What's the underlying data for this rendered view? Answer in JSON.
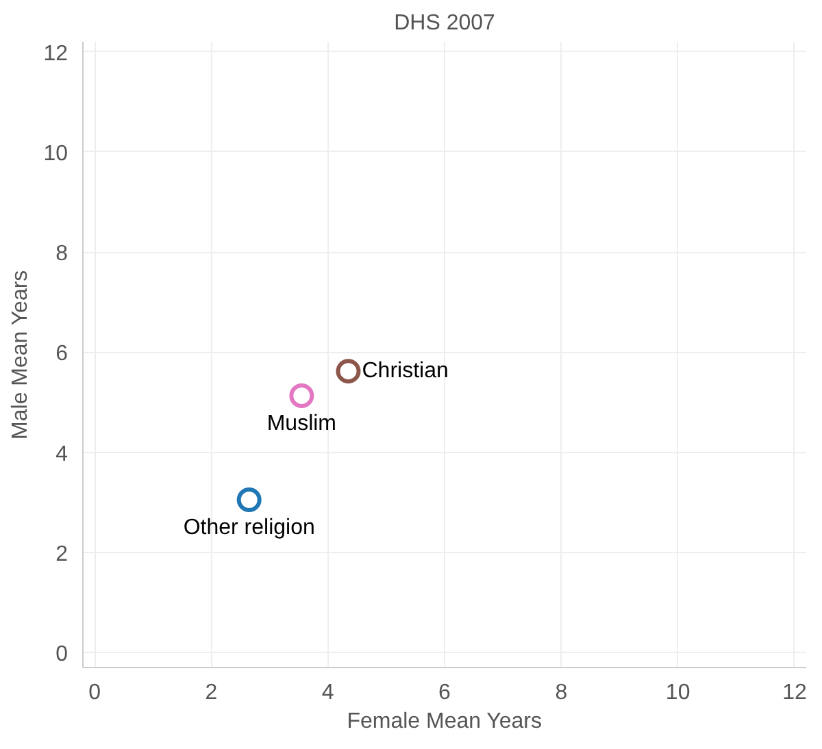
{
  "chart_data": {
    "type": "scatter",
    "title": "DHS 2007",
    "xlabel": "Female Mean Years",
    "ylabel": "Male Mean Years",
    "xlim": [
      -0.2,
      12.2
    ],
    "ylim": [
      -0.3,
      12.2
    ],
    "xticks": [
      0,
      2,
      4,
      6,
      8,
      10,
      12
    ],
    "yticks": [
      0,
      2,
      4,
      6,
      8,
      10,
      12
    ],
    "grid": true,
    "marker": "circle",
    "series": [
      {
        "name": "Christian",
        "color": "#8c564b",
        "x": [
          4.35
        ],
        "values": [
          5.62
        ]
      },
      {
        "name": "Muslim",
        "color": "#e377c2",
        "x": [
          3.55
        ],
        "values": [
          5.13
        ]
      },
      {
        "name": "Other religion",
        "color": "#1f77b4",
        "x": [
          2.65
        ],
        "values": [
          3.05
        ]
      }
    ]
  }
}
